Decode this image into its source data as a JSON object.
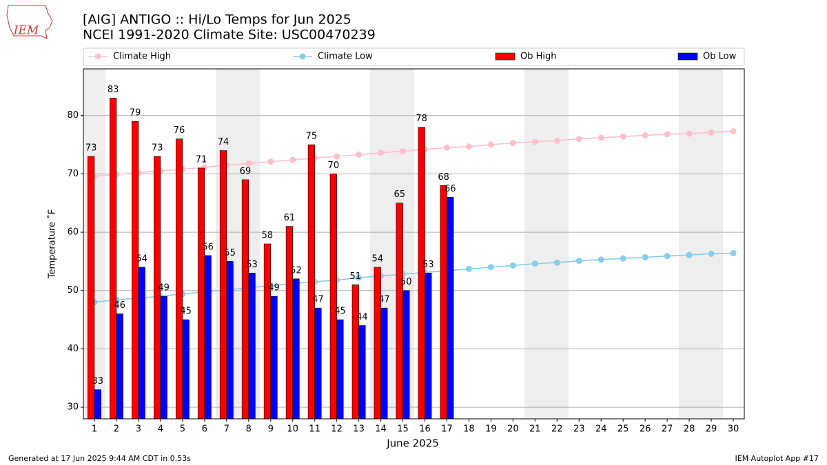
{
  "chart_data": {
    "type": "bar",
    "title": "[AIG] ANTIGO :: Hi/Lo Temps for Jun 2025",
    "subtitle": "NCEI 1991-2020 Climate Site: USC00470239",
    "xlabel": "June 2025",
    "ylabel": "Temperature ˚F",
    "x": [
      1,
      2,
      3,
      4,
      5,
      6,
      7,
      8,
      9,
      10,
      11,
      12,
      13,
      14,
      15,
      16,
      17,
      18,
      19,
      20,
      21,
      22,
      23,
      24,
      25,
      26,
      27,
      28,
      29,
      30
    ],
    "xlim": [
      0.5,
      30.5
    ],
    "xticks": [
      1,
      2,
      3,
      4,
      5,
      6,
      7,
      8,
      9,
      10,
      11,
      12,
      13,
      14,
      15,
      16,
      17,
      18,
      19,
      20,
      21,
      22,
      23,
      24,
      25,
      26,
      27,
      28,
      29,
      30
    ],
    "ylim": [
      28,
      88
    ],
    "yticks": [
      30,
      40,
      50,
      60,
      70,
      80
    ],
    "grid": true,
    "legend": "top",
    "series": [
      {
        "name": "Climate High",
        "type": "line",
        "color": "#ffc0cb",
        "values": [
          69.6,
          69.9,
          70.2,
          70.5,
          70.8,
          71.1,
          71.5,
          71.8,
          72.1,
          72.4,
          72.7,
          73.0,
          73.3,
          73.6,
          73.9,
          74.2,
          74.5,
          74.7,
          75.0,
          75.3,
          75.5,
          75.7,
          76.0,
          76.2,
          76.4,
          76.6,
          76.8,
          76.9,
          77.1,
          77.3
        ]
      },
      {
        "name": "Climate Low",
        "type": "line",
        "color": "#87ceeb",
        "values": [
          48.0,
          48.4,
          48.7,
          49.0,
          49.4,
          49.8,
          50.1,
          50.5,
          50.8,
          51.2,
          51.5,
          51.8,
          52.2,
          52.5,
          52.8,
          53.1,
          53.4,
          53.7,
          54.0,
          54.3,
          54.6,
          54.8,
          55.1,
          55.3,
          55.5,
          55.7,
          55.9,
          56.1,
          56.3,
          56.4
        ]
      },
      {
        "name": "Ob High",
        "type": "bar",
        "color": "#ff0000",
        "values": [
          73,
          83,
          79,
          73,
          76,
          71,
          74,
          69,
          58,
          61,
          75,
          70,
          51,
          54,
          65,
          78,
          68,
          null,
          null,
          null,
          null,
          null,
          null,
          null,
          null,
          null,
          null,
          null,
          null,
          null
        ]
      },
      {
        "name": "Ob Low",
        "type": "bar",
        "color": "#0000ff",
        "values": [
          33,
          46,
          54,
          49,
          45,
          56,
          55,
          53,
          49,
          52,
          47,
          45,
          44,
          47,
          50,
          53,
          66,
          null,
          null,
          null,
          null,
          null,
          null,
          null,
          null,
          null,
          null,
          null,
          null,
          null
        ]
      }
    ]
  },
  "logo_text": "IEM",
  "footer_left": "Generated at 17 Jun 2025 9:44 AM CDT in 0.53s",
  "footer_right": "IEM Autoplot App #17"
}
